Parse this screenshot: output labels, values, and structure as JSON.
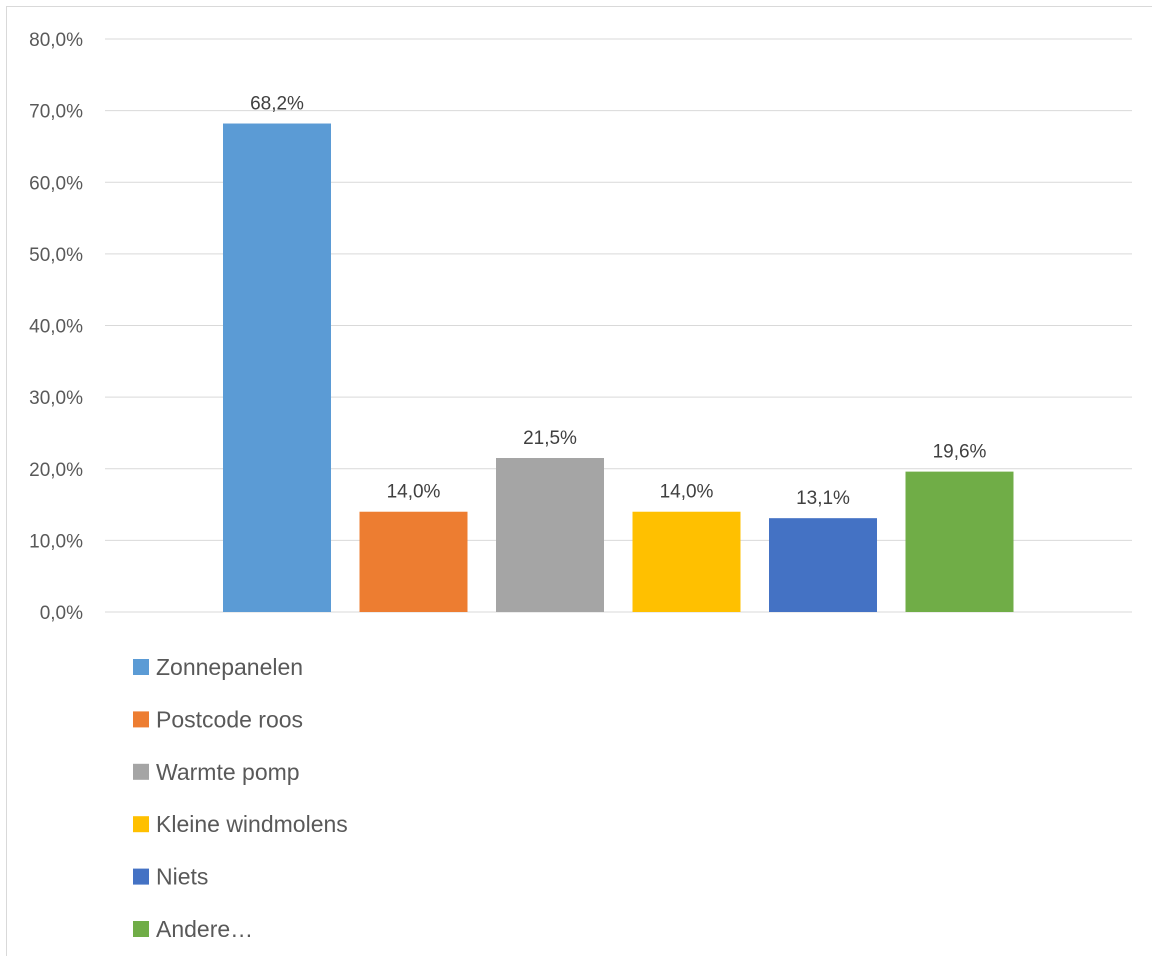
{
  "chart_data": {
    "type": "bar",
    "categories": [
      "Zonnepanelen",
      "Postcode roos",
      "Warmte pomp",
      "Kleine windmolens",
      "Niets",
      "Andere…"
    ],
    "values": [
      68.2,
      14.0,
      21.5,
      14.0,
      13.1,
      19.6
    ],
    "data_labels": [
      "68,2%",
      "14,0%",
      "21,5%",
      "14,0%",
      "13,1%",
      "19,6%"
    ],
    "colors": [
      "#5b9bd5",
      "#ed7d31",
      "#a5a5a5",
      "#ffc000",
      "#4472c4",
      "#70ad47"
    ],
    "ylim": [
      0,
      80
    ],
    "y_ticks": [
      0,
      10,
      20,
      30,
      40,
      50,
      60,
      70,
      80
    ],
    "y_tick_labels": [
      "0,0%",
      "10,0%",
      "20,0%",
      "30,0%",
      "40,0%",
      "50,0%",
      "60,0%",
      "70,0%",
      "80,0%"
    ],
    "grid": true,
    "legend_position": "bottom-left",
    "title": "",
    "xlabel": "",
    "ylabel": ""
  }
}
